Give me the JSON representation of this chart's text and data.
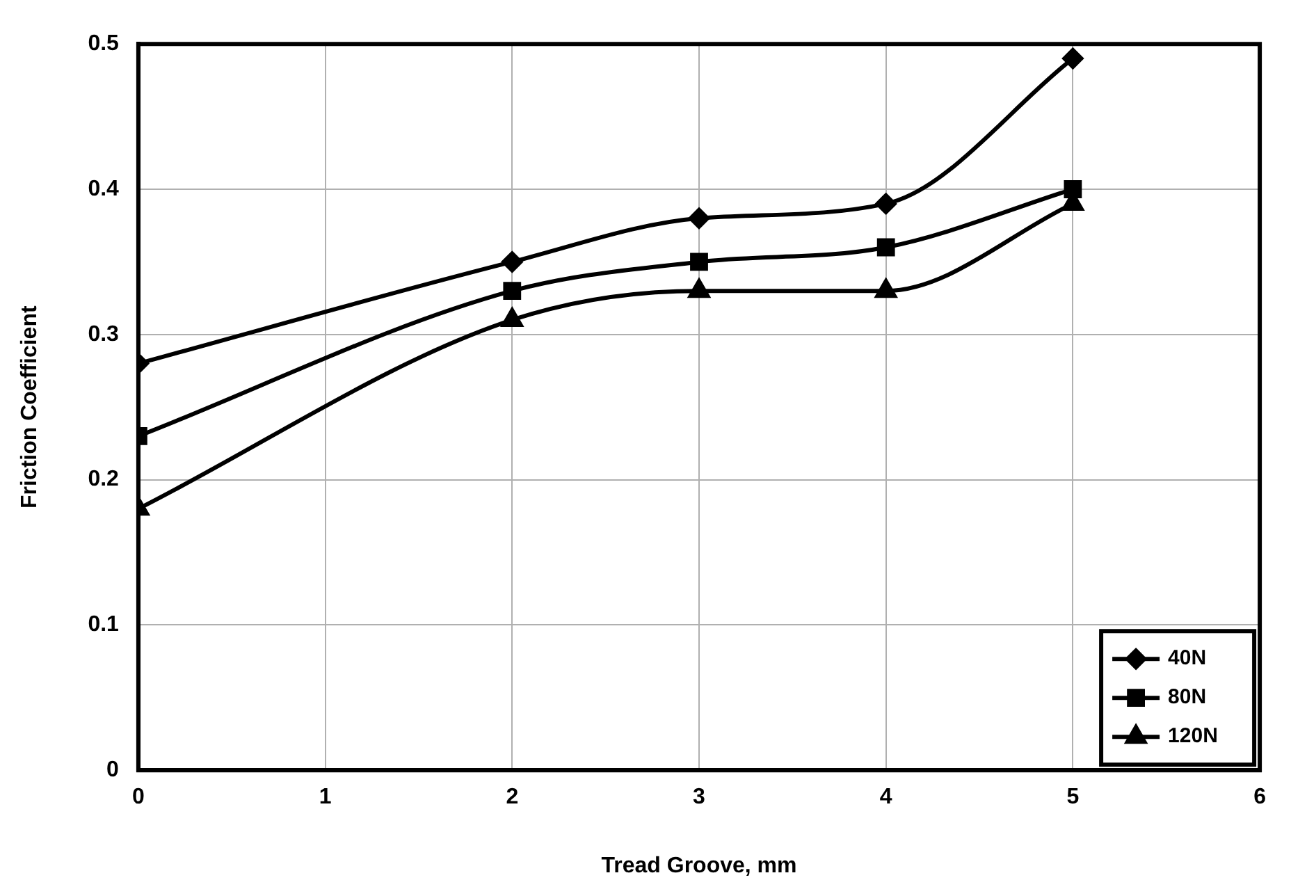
{
  "chart_data": {
    "type": "line",
    "xlabel": "Tread Groove, mm",
    "ylabel": "Friction Coefficient",
    "x": [
      0,
      2,
      3,
      4,
      5
    ],
    "series": [
      {
        "name": "40N",
        "color": "#000000",
        "marker": "diamond",
        "values": [
          0.28,
          0.35,
          0.38,
          0.39,
          0.49
        ]
      },
      {
        "name": "80N",
        "color": "#000000",
        "marker": "square",
        "values": [
          0.23,
          0.33,
          0.35,
          0.36,
          0.4
        ]
      },
      {
        "name": "120N",
        "color": "#000000",
        "marker": "triangle",
        "values": [
          0.18,
          0.31,
          0.33,
          0.33,
          0.39
        ]
      }
    ],
    "xlim": [
      0,
      6
    ],
    "xticks": [
      0,
      1,
      2,
      3,
      4,
      5,
      6
    ],
    "ylim": [
      0,
      0.5
    ],
    "yticks": [
      0,
      0.1,
      0.2,
      0.3,
      0.4,
      0.5
    ],
    "grid": true,
    "legend": "bottom right",
    "line_style": "solid"
  }
}
